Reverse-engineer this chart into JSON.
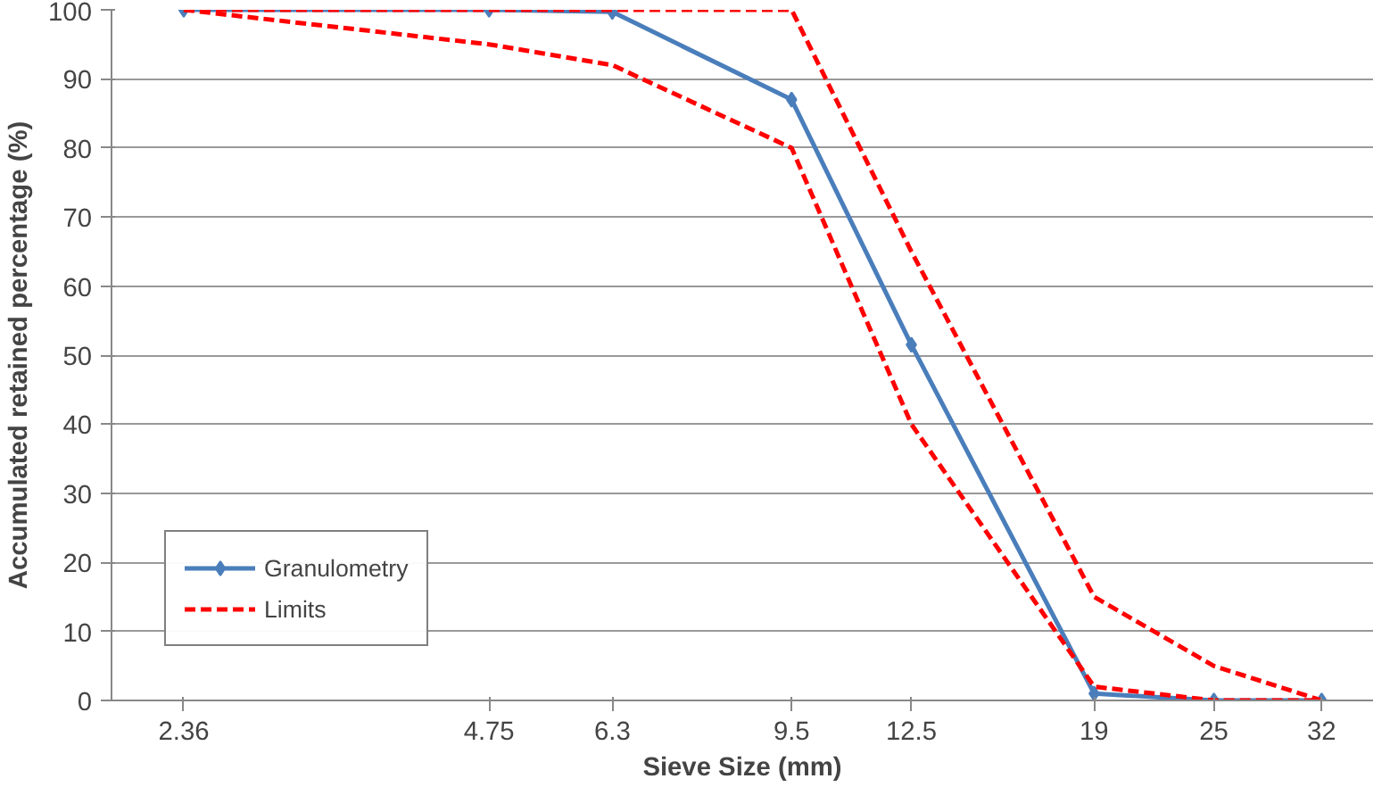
{
  "chart_data": {
    "type": "line",
    "xlabel": "Sieve Size (mm)",
    "ylabel": "Accumulated retained percentage (%)",
    "log": "x",
    "xlim": [
      2,
      36
    ],
    "xticks": [
      2.36,
      4.75,
      6.3,
      9.5,
      12.5,
      19,
      25,
      32
    ],
    "ylim": [
      0,
      100
    ],
    "yticks": [
      0,
      10,
      20,
      30,
      40,
      50,
      60,
      70,
      80,
      90,
      100
    ],
    "grid": "y",
    "legend": "bottom left",
    "series": [
      {
        "name": "Granulometry",
        "color": "#4a7ebb",
        "marker": "diamond",
        "line_style": "solid",
        "x": [
          2.36,
          4.75,
          6.3,
          9.5,
          12.5,
          19,
          25,
          32
        ],
        "values": [
          100,
          100,
          99.7,
          87,
          51.5,
          1,
          0,
          0
        ]
      },
      {
        "name": "Limits",
        "color": "#ff0000",
        "marker": "none",
        "line_style": "dashed",
        "x": [
          2.36,
          4.75,
          6.3,
          9.5,
          12.5,
          19,
          25,
          32
        ],
        "values": [
          100,
          100,
          100,
          100,
          65,
          15,
          5,
          0
        ]
      },
      {
        "color": "#ff0000",
        "marker": "none",
        "line_style": "dashed",
        "x": [
          2.36,
          4.75,
          6.3,
          9.5,
          12.5,
          19,
          25,
          32
        ],
        "values": [
          100,
          95,
          92,
          80,
          40,
          2,
          0,
          0
        ]
      }
    ]
  }
}
